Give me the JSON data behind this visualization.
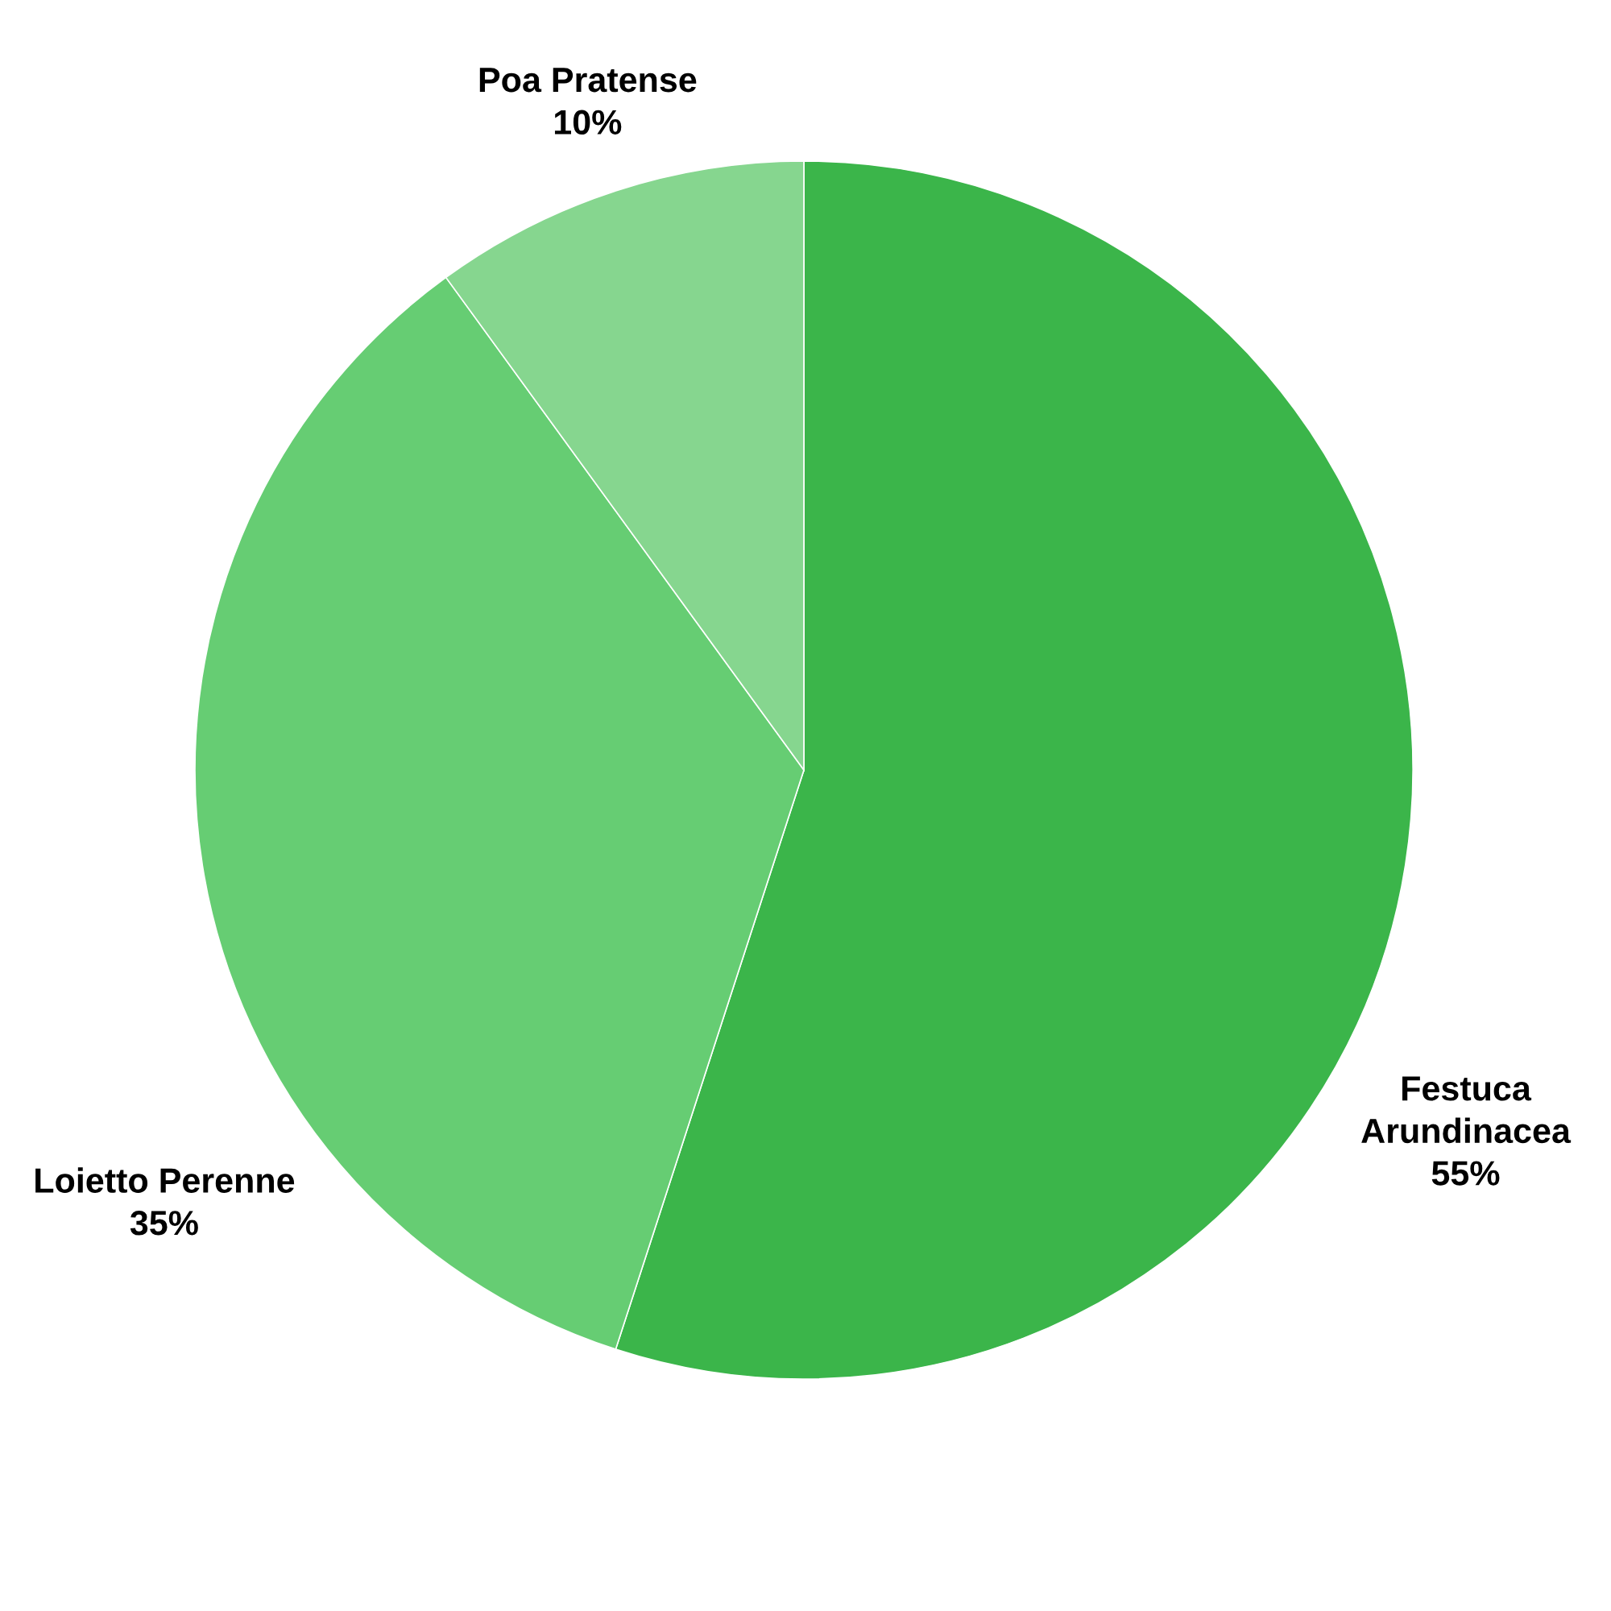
{
  "chart_data": {
    "type": "pie",
    "categories": [
      "Festuca\nArundinacea",
      "Loietto Perenne",
      "Poa Pratense"
    ],
    "values": [
      55,
      35,
      10
    ],
    "value_labels": [
      "55%",
      "35%",
      "10%"
    ],
    "colors": [
      "#3bb54a",
      "#66cd73",
      "#86d68f"
    ]
  }
}
